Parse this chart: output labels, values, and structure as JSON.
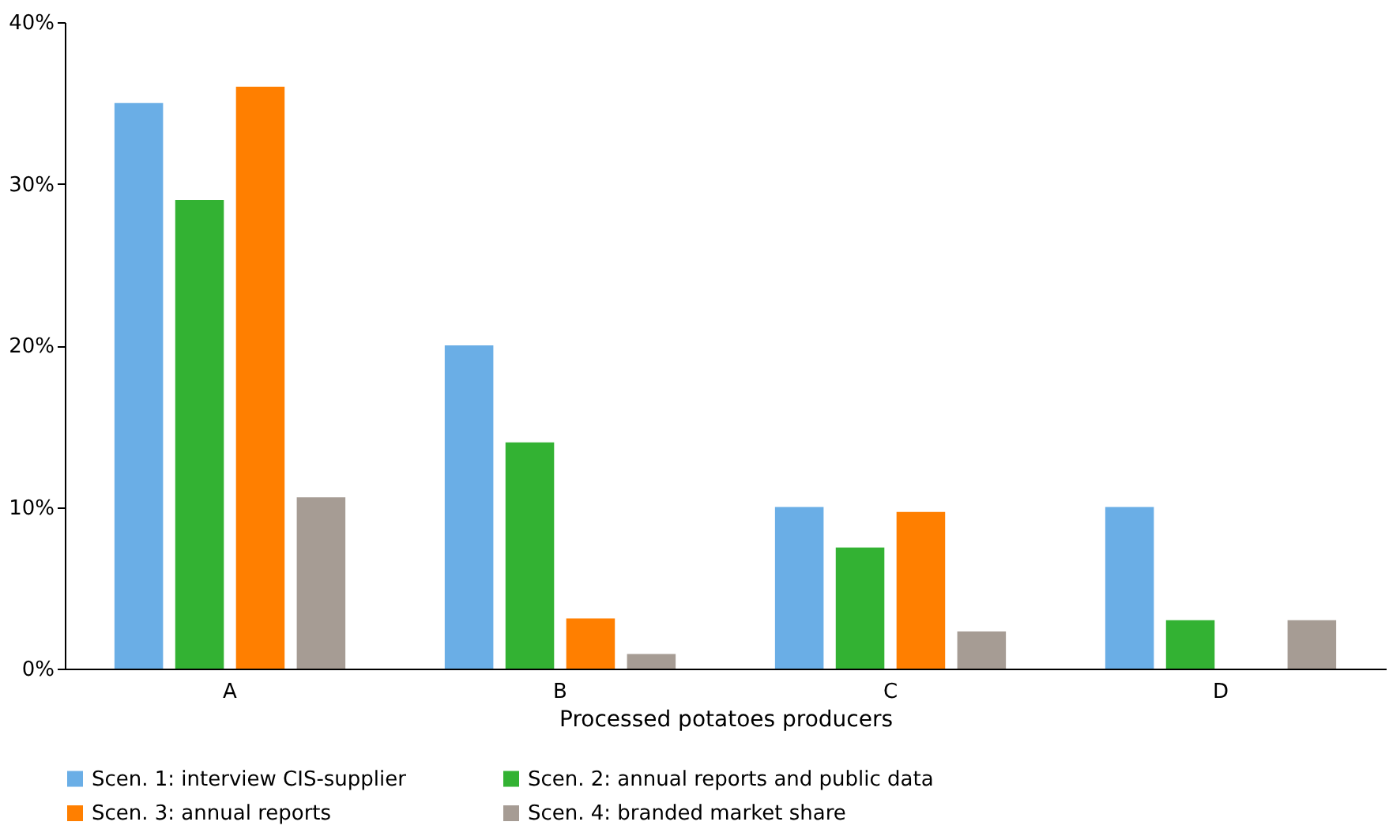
{
  "chart_data": {
    "type": "bar",
    "xlabel": "Processed potatoes producers",
    "categories": [
      "A",
      "B",
      "C",
      "D"
    ],
    "series": [
      {
        "name": "Scen. 1: interview CIS-supplier",
        "color": "#6aaee6",
        "values": [
          35,
          20,
          10,
          10
        ]
      },
      {
        "name": "Scen. 2: annual reports and public data",
        "color": "#33b233",
        "values": [
          29,
          14,
          7.5,
          3
        ]
      },
      {
        "name": "Scen. 3: annual reports",
        "color": "#ff7f00",
        "values": [
          36,
          3.1,
          9.7,
          null
        ]
      },
      {
        "name": "Scen. 4: branded market share",
        "color": "#a69c94",
        "values": [
          10.6,
          0.9,
          2.3,
          3
        ]
      }
    ],
    "ylim": [
      0,
      40
    ],
    "yticks": [
      {
        "value": 0,
        "label": "0%"
      },
      {
        "value": 10,
        "label": "10%"
      },
      {
        "value": 20,
        "label": "20%"
      },
      {
        "value": 30,
        "label": "30%"
      },
      {
        "value": 40,
        "label": "40%"
      }
    ],
    "grid": false,
    "legend": "bottom"
  }
}
